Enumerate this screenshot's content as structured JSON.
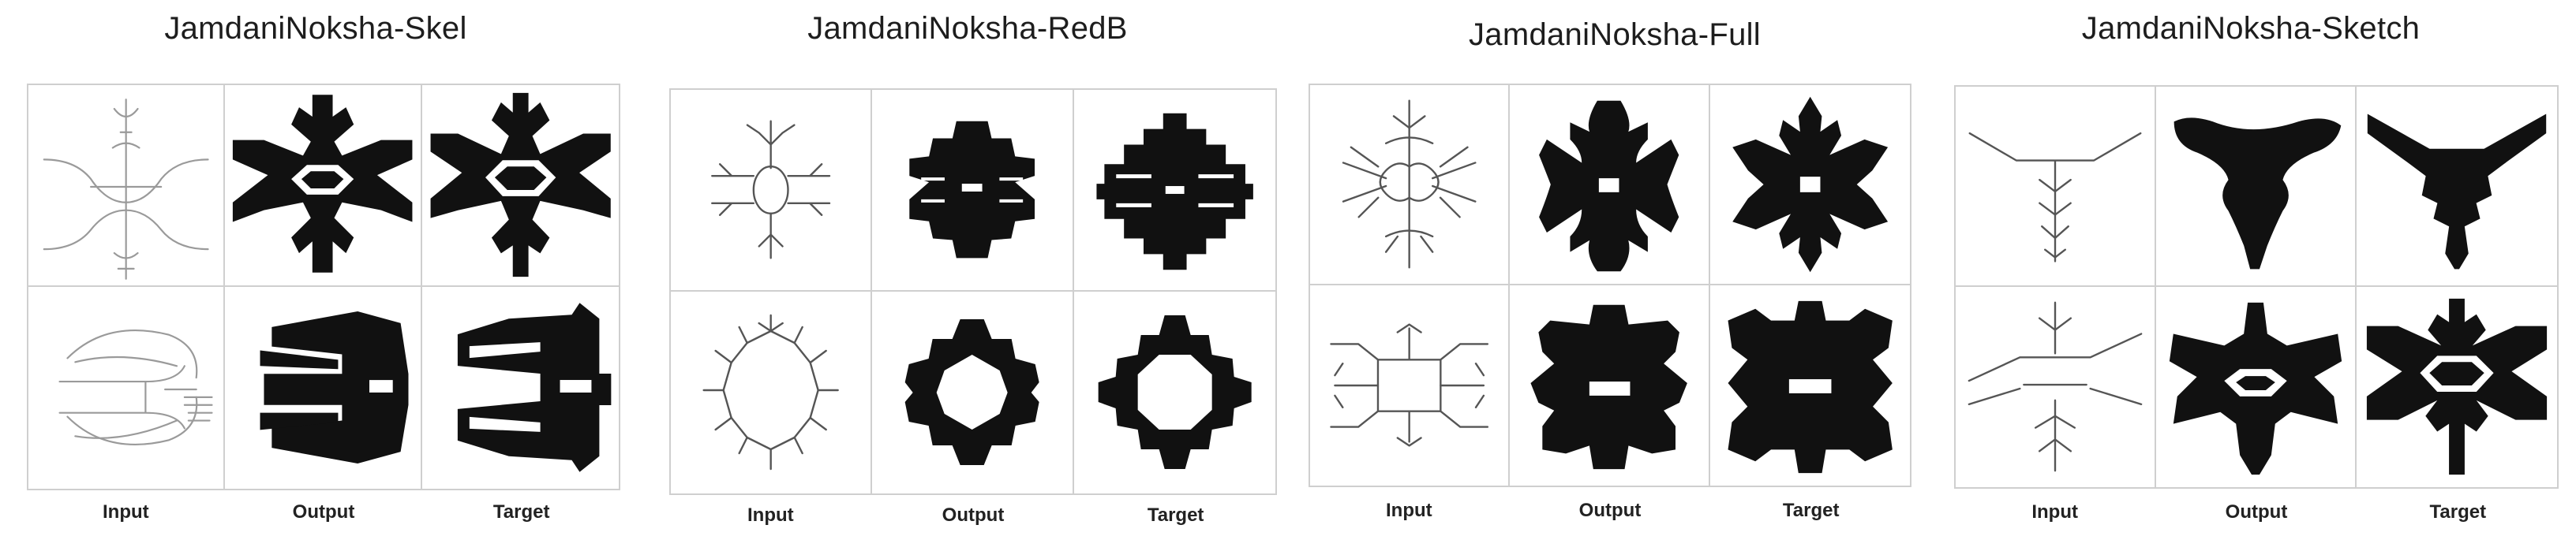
{
  "panels": [
    {
      "title": "JamdaniNoksha-Skel",
      "columns": [
        "Input",
        "Output",
        "Target"
      ]
    },
    {
      "title": "JamdaniNoksha-RedB",
      "columns": [
        "Input",
        "Output",
        "Target"
      ]
    },
    {
      "title": "JamdaniNoksha-Full",
      "columns": [
        "Input",
        "Output",
        "Target"
      ]
    },
    {
      "title": "JamdaniNoksha-Sketch",
      "columns": [
        "Input",
        "Output",
        "Target"
      ]
    }
  ]
}
